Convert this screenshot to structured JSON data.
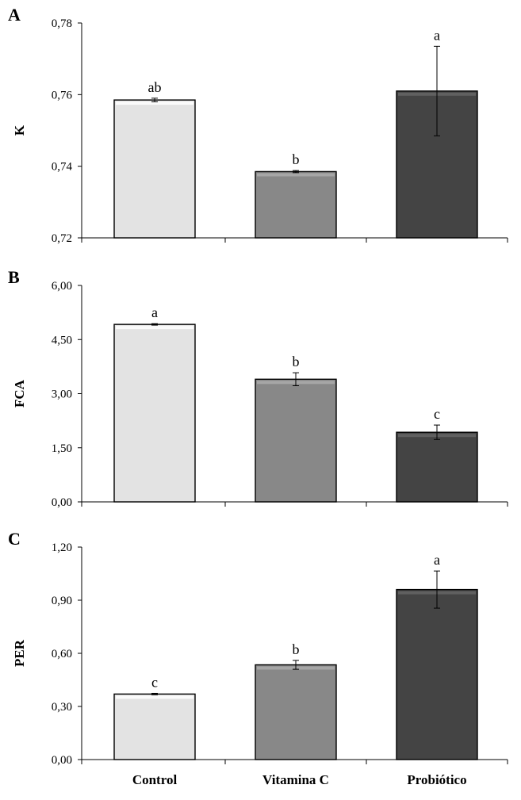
{
  "chart_data": [
    {
      "panel": "A",
      "type": "bar",
      "ylabel": "K",
      "ylim": [
        0.72,
        0.78
      ],
      "yticks": [
        "0,72",
        "0,74",
        "0,76",
        "0,78"
      ],
      "categories": [
        "Control",
        "Vitamina C",
        "Probiótico"
      ],
      "values": [
        0.7585,
        0.7385,
        0.761
      ],
      "errors": [
        0.0005,
        0.0003,
        0.0125
      ],
      "letters": [
        "ab",
        "b",
        "a"
      ],
      "grid": false
    },
    {
      "panel": "B",
      "type": "bar",
      "ylabel": "FCA",
      "ylim": [
        0,
        6
      ],
      "yticks": [
        "0,00",
        "1,50",
        "3,00",
        "4,50",
        "6,00"
      ],
      "categories": [
        "Control",
        "Vitamina C",
        "Probiótico"
      ],
      "values": [
        4.92,
        3.4,
        1.93
      ],
      "errors": [
        0.02,
        0.18,
        0.2
      ],
      "letters": [
        "a",
        "b",
        "c"
      ],
      "grid": false
    },
    {
      "panel": "C",
      "type": "bar",
      "ylabel": "PER",
      "ylim": [
        0,
        1.2
      ],
      "yticks": [
        "0,00",
        "0,30",
        "0,60",
        "0,90",
        "1,20"
      ],
      "categories": [
        "Control",
        "Vitamina C",
        "Probiótico"
      ],
      "values": [
        0.37,
        0.535,
        0.96
      ],
      "errors": [
        0.004,
        0.025,
        0.105
      ],
      "letters": [
        "c",
        "b",
        "a"
      ],
      "grid": false
    }
  ],
  "colors": {
    "bars": [
      "#e3e3e3",
      "#888888",
      "#444444"
    ],
    "bar_highlight": [
      "#fbfbfb",
      "#a6a6a6",
      "#606060"
    ],
    "axis": "#000000"
  }
}
